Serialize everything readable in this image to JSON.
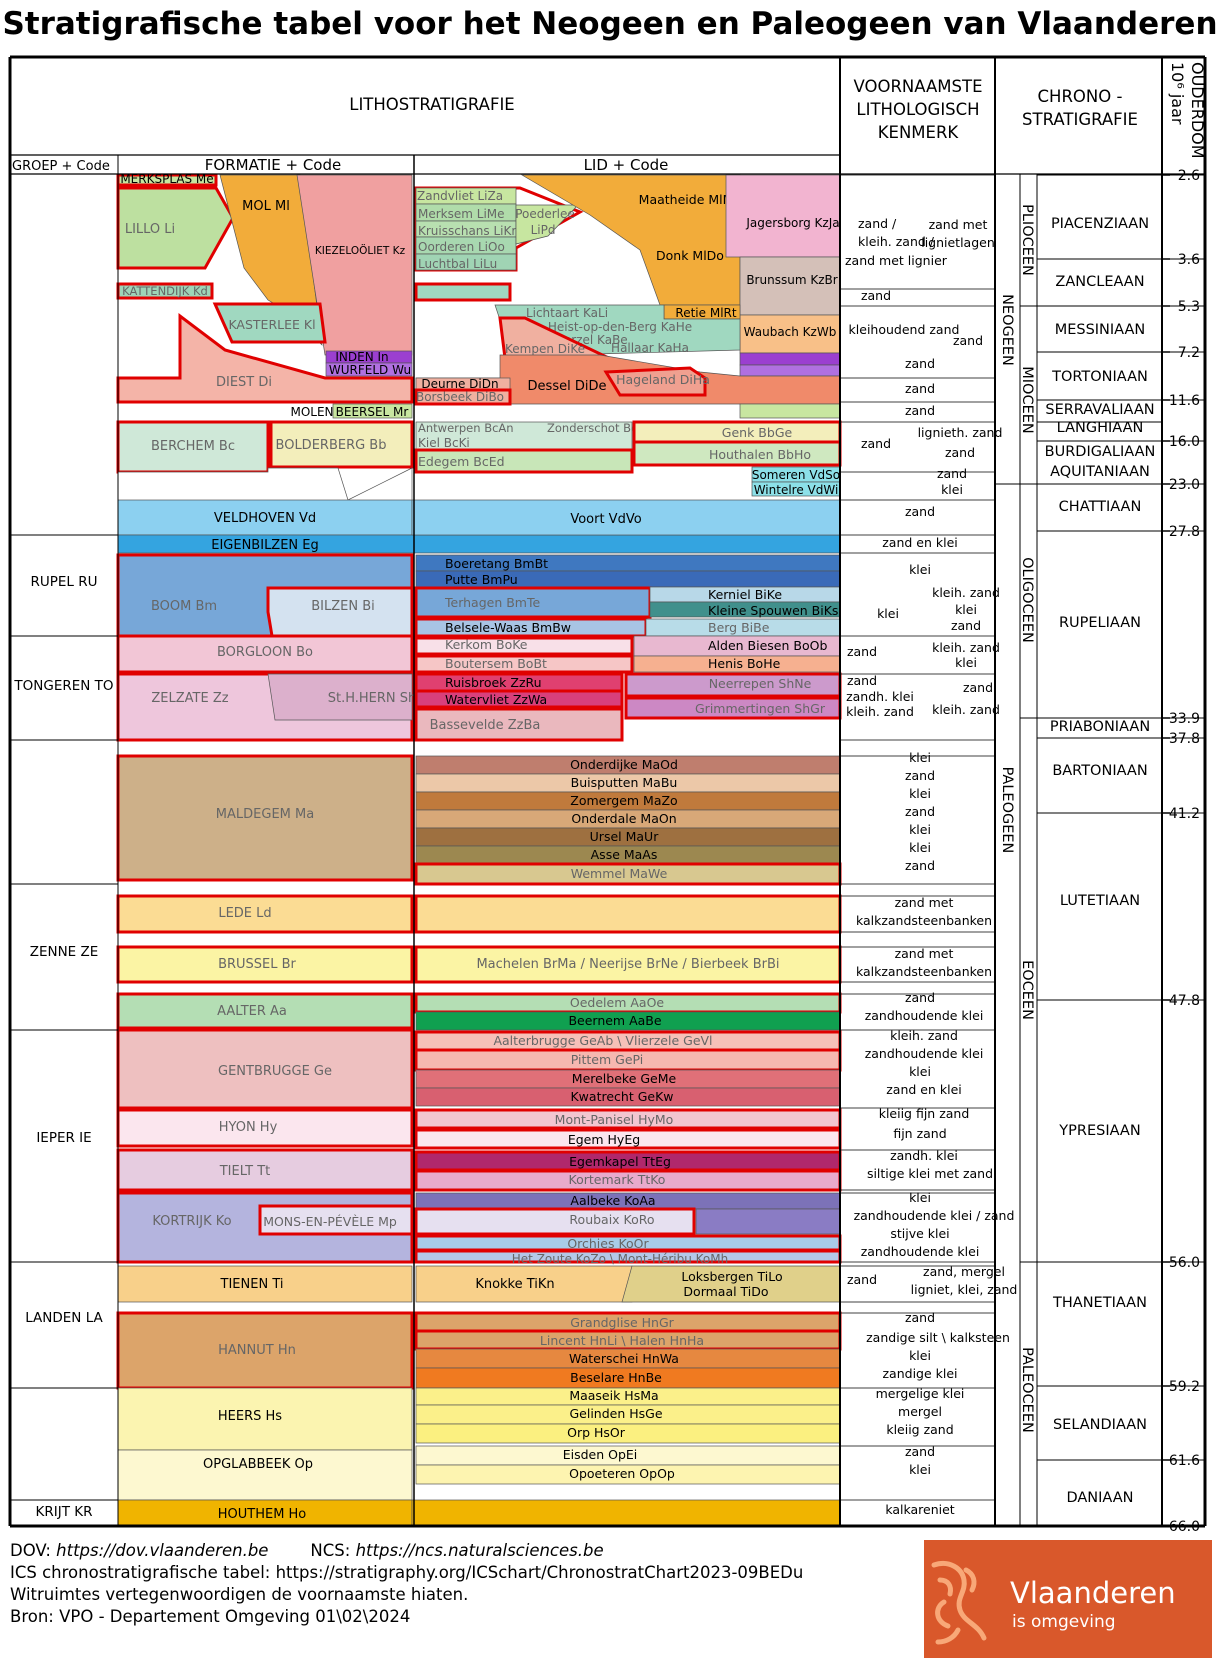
{
  "title": "Stratigrafische tabel voor het Neogeen en Paleogeen van Vlaanderen",
  "headers": {
    "litho": "LITHOSTRATIGRAFIE",
    "groep": "GROEP + Code",
    "formatie": "FORMATIE + Code",
    "lid": "LID + Code",
    "kenmerk": [
      "VOORNAAMSTE",
      "LITHOLOGISCH",
      "KENMERK"
    ],
    "chrono": [
      "CHRONO -",
      "STRATIGRAFIE"
    ],
    "ouderdom": [
      "OUDERDOM",
      "10⁶ jaar"
    ]
  },
  "groups": [
    {
      "label": "RUPEL RU"
    },
    {
      "label": "TONGEREN TO"
    },
    {
      "label": "ZENNE ZE"
    },
    {
      "label": "IEPER IE"
    },
    {
      "label": "LANDEN LA"
    },
    {
      "label": "KRIJT KR"
    }
  ],
  "formations": [
    {
      "label": "MERKSPLAS Me",
      "color": "#c7e6a0"
    },
    {
      "label": "LILLO Li",
      "color": "#bde0a0"
    },
    {
      "label": "MOL Ml",
      "color": "#f2ac3a"
    },
    {
      "label": "KIEZELOÖLIET Kz",
      "color": "#f0a0a0"
    },
    {
      "label": "KATTENDIJK Kd",
      "color": "#9ed4b8"
    },
    {
      "label": "KASTERLEE Kl",
      "color": "#a0d8c0"
    },
    {
      "label": "INDEN In",
      "color": "#9b3fd0"
    },
    {
      "label": "WURFELD Wu",
      "color": "#b070e0"
    },
    {
      "label": "DIEST Di",
      "color": "#f4b4a8"
    },
    {
      "label": "MOLEN",
      "color": "#ffffff"
    },
    {
      "label": "BEERSEL Mr",
      "color": "#c8e6a0"
    },
    {
      "label": "BERCHEM Bc",
      "color": "#cfe8d8"
    },
    {
      "label": "BOLDERBERG Bb",
      "color": "#f3eebb"
    },
    {
      "label": "VELDHOVEN Vd",
      "color": "#8cd0f0"
    },
    {
      "label": "EIGENBILZEN Eg",
      "color": "#34a4e0"
    },
    {
      "label": "BOOM Bm",
      "color": "#77a7d8"
    },
    {
      "label": "BILZEN Bi",
      "color": "#d4e2f0"
    },
    {
      "label": "BORGLOON Bo",
      "color": "#f2c6d6"
    },
    {
      "label": "ZELZATE Zz",
      "color": "#eec6dc"
    },
    {
      "label": "St.H.HERN Sh",
      "color": "#dcb0cc"
    },
    {
      "label": "MALDEGEM Ma",
      "color": "#cdb089"
    },
    {
      "label": "LEDE Ld",
      "color": "#fbdc94"
    },
    {
      "label": "BRUSSEL Br",
      "color": "#fbf4a4"
    },
    {
      "label": "AALTER Aa",
      "color": "#b4deb4"
    },
    {
      "label": "GENTBRUGGE Ge",
      "color": "#eec0c0"
    },
    {
      "label": "HYON Hy",
      "color": "#fbe6ee"
    },
    {
      "label": "TIELT Tt",
      "color": "#e6cce0"
    },
    {
      "label": "KORTRIJK Ko",
      "color": "#b4b4de"
    },
    {
      "label": "MONS-EN-PÉVÈLE Mp",
      "color": "#e6e0f0"
    },
    {
      "label": "TIENEN Ti",
      "color": "#f8d08a"
    },
    {
      "label": "HANNUT Hn",
      "color": "#dca46a"
    },
    {
      "label": "HEERS Hs",
      "color": "#fbf4b0"
    },
    {
      "label": "OPGLABBEEK Op",
      "color": "#fdf8d0"
    },
    {
      "label": "HOUTHEM Ho",
      "color": "#f0b400"
    }
  ],
  "members": [
    {
      "label": "Zandvliet LiZa",
      "color": "#c7e6a0"
    },
    {
      "label": "Merksem LiMe",
      "color": "#b0dcaa"
    },
    {
      "label": "Kruisschans LiKr",
      "color": "#b8e0b0"
    },
    {
      "label": "Oorderen LiOo",
      "color": "#a8d8b0"
    },
    {
      "label": "Luchtbal LiLu",
      "color": "#a0d4b4"
    },
    {
      "label": "Poederlee LiPd",
      "color": "#c7e6a0"
    },
    {
      "label": "Maatheide MlMh",
      "color": "#f2ac3a"
    },
    {
      "label": "Donk MlDo",
      "color": "#f2ac3a"
    },
    {
      "label": "Jagersborg KzJa",
      "color": "#f2b4d0"
    },
    {
      "label": "Brunssum KzBr",
      "color": "#d4c0b8"
    },
    {
      "label": "Waubach KzWb",
      "color": "#f8c088"
    },
    {
      "label": "Retie MlRt",
      "color": "#f2ac3a"
    },
    {
      "label": "Lichtaart KaLi",
      "color": "#a0d8c0"
    },
    {
      "label": "Heist-op-den-Berg KaHe",
      "color": "#a0d8c0"
    },
    {
      "label": "Beerzel KaBe",
      "color": "#a0d8c0"
    },
    {
      "label": "Kempen DiKe",
      "color": "#f0b0a0"
    },
    {
      "label": "Hallaar KaHa",
      "color": "#a0d8c0"
    },
    {
      "label": "Deurne DiDn",
      "color": "#f0b0a0"
    },
    {
      "label": "Borsbeek DiBo",
      "color": "#f0b0a0"
    },
    {
      "label": "Dessel DiDe",
      "color": "#f08a6a"
    },
    {
      "label": "Hageland DiHa",
      "color": "#f0a090"
    },
    {
      "label": "Antwerpen BcAn",
      "color": "#cfe8d8"
    },
    {
      "label": "Zonderschot BcZo",
      "color": "#cfe8d8"
    },
    {
      "label": "Kiel BcKi",
      "color": "#cfe8d8"
    },
    {
      "label": "Edegem BcEd",
      "color": "#c8e6b8"
    },
    {
      "label": "Genk BbGe",
      "color": "#f3eebb"
    },
    {
      "label": "Houthalen BbHo",
      "color": "#cfe8c0"
    },
    {
      "label": "Someren VdSo",
      "color": "#8ce0e8"
    },
    {
      "label": "Wintelre VdWi",
      "color": "#8ce0e8"
    },
    {
      "label": "Voort VdVo",
      "color": "#8cd0f0"
    },
    {
      "label": "Boeretang BmBt",
      "color": "#3f78c0"
    },
    {
      "label": "Putte BmPu",
      "color": "#3a6ab8"
    },
    {
      "label": "Terhagen BmTe",
      "color": "#77a7d8"
    },
    {
      "label": "Belsele-Waas BmBw",
      "color": "#a8c4e4"
    },
    {
      "label": "Kerniel BiKe",
      "color": "#b8d8e8"
    },
    {
      "label": "Kleine Spouwen BiKs",
      "color": "#40908c"
    },
    {
      "label": "Berg BiBe",
      "color": "#b8dce8"
    },
    {
      "label": "Kerkom BoKe",
      "color": "#f8e0e8"
    },
    {
      "label": "Alden Biesen BoOb",
      "color": "#e8b8d0"
    },
    {
      "label": "Boutersem BoBt",
      "color": "#f6c6c6"
    },
    {
      "label": "Henis BoHe",
      "color": "#f6b090"
    },
    {
      "label": "Ruisbroek ZzRu",
      "color": "#e04070"
    },
    {
      "label": "Watervliet ZzWa",
      "color": "#d8407c"
    },
    {
      "label": "Neerrepen ShNe",
      "color": "#cc9acc"
    },
    {
      "label": "Grimmertingen ShGr",
      "color": "#cc88c4"
    },
    {
      "label": "Bassevelde ZzBa",
      "color": "#eab8be"
    },
    {
      "label": "Onderdijke MaOd",
      "color": "#bf7e6e"
    },
    {
      "label": "Buisputten MaBu",
      "color": "#ecc8a8"
    },
    {
      "label": "Zomergem MaZo",
      "color": "#c07a3c"
    },
    {
      "label": "Onderdale MaOn",
      "color": "#d8a878"
    },
    {
      "label": "Ursel MaUr",
      "color": "#9e7040"
    },
    {
      "label": "Asse MaAs",
      "color": "#9c8850"
    },
    {
      "label": "Wemmel MaWe",
      "color": "#d8c890"
    },
    {
      "label": "Machelen BrMa / Neerijse BrNe / Bierbeek BrBi",
      "color": "#fbf4a4"
    },
    {
      "label": "Oedelem AaOe",
      "color": "#b4deb4"
    },
    {
      "label": "Beernem AaBe",
      "color": "#10a050"
    },
    {
      "label": "Aalterbrugge GeAb \\ Vlierzele GeVl",
      "color": "#f6c0b8"
    },
    {
      "label": "Pittem GePi",
      "color": "#f6b8b0"
    },
    {
      "label": "Merelbeke GeMe",
      "color": "#e07078"
    },
    {
      "label": "Kwatrecht GeKw",
      "color": "#d86070"
    },
    {
      "label": "Mont-Panisel HyMo",
      "color": "#f2c6d0"
    },
    {
      "label": "Egem HyEg",
      "color": "#fbe6ee"
    },
    {
      "label": "Egemkapel TtEg",
      "color": "#b0286c"
    },
    {
      "label": "Kortemark TtKo",
      "color": "#e8aacc"
    },
    {
      "label": "Aalbeke KoAa",
      "color": "#7c72b8"
    },
    {
      "label": "Roubaix KoRo",
      "color": "#e6e0f0"
    },
    {
      "label": "Orchies KoOr",
      "color": "#a8cce8"
    },
    {
      "label": "Het Zoute KoZo \\ Mont-Héribu KoMh",
      "color": "#b4c8e8"
    },
    {
      "label": "Knokke TiKn",
      "color": "#f8d08a"
    },
    {
      "label": "Loksbergen TiLo",
      "color": "#e0d08a"
    },
    {
      "label": "Dormaal TiDo",
      "color": "#e0d08a"
    },
    {
      "label": "Grandglise HnGr",
      "color": "#dca46a"
    },
    {
      "label": "Lincent HnLi \\ Halen HnHa",
      "color": "#dca46a"
    },
    {
      "label": "Waterschei HnWa",
      "color": "#e68840"
    },
    {
      "label": "Beselare HnBe",
      "color": "#f07a20"
    },
    {
      "label": "Maaseik HsMa",
      "color": "#fbf08a"
    },
    {
      "label": "Gelinden HsGe",
      "color": "#fbf08a"
    },
    {
      "label": "Orp HsOr",
      "color": "#fbf080"
    },
    {
      "label": "Eisden OpEi",
      "color": "#fdf8d0"
    },
    {
      "label": "Opoeteren OpOp",
      "color": "#fdf4b0"
    }
  ],
  "lithology": [
    {
      "label": "zand /"
    },
    {
      "label": "kleih. zand /"
    },
    {
      "label": "zand met lignier"
    },
    {
      "label": "zand met"
    },
    {
      "label": "lignietlagen"
    },
    {
      "label": "zand"
    },
    {
      "label": "kleihoudend zand"
    },
    {
      "label": "zand"
    },
    {
      "label": "zand"
    },
    {
      "label": "zand"
    },
    {
      "label": "zand"
    },
    {
      "label": "zand"
    },
    {
      "label": "lignieth. zand"
    },
    {
      "label": "zand"
    },
    {
      "label": "zand"
    },
    {
      "label": "klei"
    },
    {
      "label": "zand"
    },
    {
      "label": "zand en klei"
    },
    {
      "label": "klei"
    },
    {
      "label": "kleih. zand"
    },
    {
      "label": "klei"
    },
    {
      "label": "klei"
    },
    {
      "label": "zand"
    },
    {
      "label": "zand"
    },
    {
      "label": "kleih. zand"
    },
    {
      "label": "klei"
    },
    {
      "label": "zand"
    },
    {
      "label": "zandh. klei"
    },
    {
      "label": "kleih. zand"
    },
    {
      "label": "zand"
    },
    {
      "label": "kleih. zand"
    },
    {
      "label": "klei"
    },
    {
      "label": "zand"
    },
    {
      "label": "klei"
    },
    {
      "label": "zand"
    },
    {
      "label": "klei"
    },
    {
      "label": "klei"
    },
    {
      "label": "zand"
    },
    {
      "label": "zand met"
    },
    {
      "label": "kalkzandsteenbanken"
    },
    {
      "label": "zand met"
    },
    {
      "label": "kalkzandsteenbanken"
    },
    {
      "label": "zand"
    },
    {
      "label": "zandhoudende klei"
    },
    {
      "label": "kleih. zand"
    },
    {
      "label": "zandhoudende klei"
    },
    {
      "label": "klei"
    },
    {
      "label": "zand en klei"
    },
    {
      "label": "kleiig fijn zand"
    },
    {
      "label": "fijn zand"
    },
    {
      "label": "zandh. klei"
    },
    {
      "label": "siltige klei met zand"
    },
    {
      "label": "klei"
    },
    {
      "label": "zandhoudende klei / zand"
    },
    {
      "label": "stijve klei"
    },
    {
      "label": "zandhoudende klei"
    },
    {
      "label": "zand"
    },
    {
      "label": "zand, mergel"
    },
    {
      "label": "ligniet, klei, zand"
    },
    {
      "label": "zand"
    },
    {
      "label": "zandige silt \\ kalksteen"
    },
    {
      "label": "klei"
    },
    {
      "label": "zandige klei"
    },
    {
      "label": "mergelige klei"
    },
    {
      "label": "mergel"
    },
    {
      "label": "kleiig zand"
    },
    {
      "label": "zand"
    },
    {
      "label": "klei"
    },
    {
      "label": "kalkareniet"
    }
  ],
  "systems": [
    {
      "label": "NEOGEEN"
    },
    {
      "label": "PALEOGEEN"
    }
  ],
  "series": [
    {
      "label": "PLIOCEEN"
    },
    {
      "label": "MIOCEEN"
    },
    {
      "label": "OLIGOCEEN"
    },
    {
      "label": "EOCEEN"
    },
    {
      "label": "PALEOCEEN"
    }
  ],
  "stages": [
    {
      "label": "PIACENZIAAN"
    },
    {
      "label": "ZANCLEAAN"
    },
    {
      "label": "MESSINIAAN"
    },
    {
      "label": "TORTONIAAN"
    },
    {
      "label": "SERRAVALIAAN"
    },
    {
      "label": "LANGHIAAN"
    },
    {
      "label": "BURDIGALIAAN"
    },
    {
      "label": "AQUITANIAAN"
    },
    {
      "label": "CHATTIAAN"
    },
    {
      "label": "RUPELIAAN"
    },
    {
      "label": "PRIABONIAAN"
    },
    {
      "label": "BARTONIAAN"
    },
    {
      "label": "LUTETIAAN"
    },
    {
      "label": "YPRESIAAN"
    },
    {
      "label": "THANETIAAN"
    },
    {
      "label": "SELANDIAAN"
    },
    {
      "label": "DANIAAN"
    }
  ],
  "ages": [
    "2.6",
    "3.6",
    "5.3",
    "7.2",
    "11.6",
    "16.0",
    "23.0",
    "27.8",
    "33.9",
    "37.8",
    "41.2",
    "47.8",
    "56.0",
    "59.2",
    "61.6",
    "66.0"
  ],
  "footer": {
    "dov_label": "DOV:",
    "dov_url": "https://dov.vlaanderen.be",
    "ncs_label": "NCS:",
    "ncs_url": "https://ncs.naturalsciences.be",
    "ics": "ICS chronostratigrafische tabel: https://stratigraphy.org/ICSchart/ChronostratChart2023-09BEDu",
    "hiaten": "Witruimtes vertegenwoordigen de voornaamste hiaten.",
    "bron": "Bron: VPO - Departement Omgeving 01\\02\\2024"
  },
  "logo": {
    "name": "Vlaanderen",
    "sub": "is omgeving",
    "color": "#d9582b"
  }
}
